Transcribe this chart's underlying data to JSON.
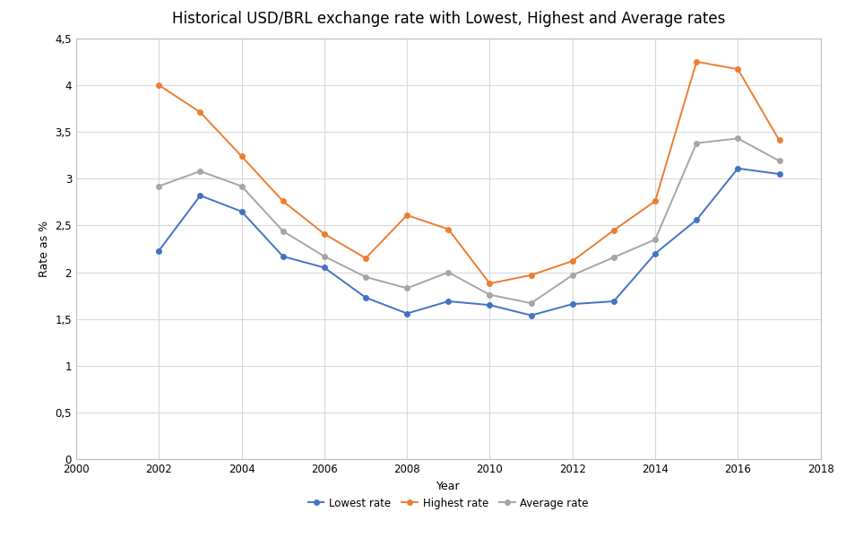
{
  "title": "Historical USD/BRL exchange rate with Lowest, Highest and Average rates",
  "xlabel": "Year",
  "ylabel": "Rate as %",
  "years": [
    2002,
    2003,
    2004,
    2005,
    2006,
    2007,
    2008,
    2009,
    2010,
    2011,
    2012,
    2013,
    2014,
    2015,
    2016,
    2017
  ],
  "lowest": [
    2.23,
    2.82,
    2.65,
    2.17,
    2.05,
    1.73,
    1.56,
    1.69,
    1.65,
    1.54,
    1.66,
    1.69,
    2.2,
    2.56,
    3.11,
    3.05
  ],
  "highest": [
    4.0,
    3.71,
    3.24,
    2.76,
    2.41,
    2.15,
    2.61,
    2.46,
    1.88,
    1.97,
    2.12,
    2.45,
    2.76,
    4.25,
    4.17,
    3.41
  ],
  "average": [
    2.92,
    3.08,
    2.92,
    2.44,
    2.17,
    1.95,
    1.83,
    2.0,
    1.76,
    1.67,
    1.97,
    2.16,
    2.35,
    3.38,
    3.43,
    3.19
  ],
  "lowest_color": "#4472C4",
  "highest_color": "#ED7D31",
  "average_color": "#A5A5A5",
  "bg_color": "#FFFFFF",
  "plot_bg_color": "#FFFFFF",
  "grid_color": "#D9D9D9",
  "xlim": [
    2000,
    2018
  ],
  "ylim": [
    0,
    4.5
  ],
  "yticks": [
    0,
    0.5,
    1.0,
    1.5,
    2.0,
    2.5,
    3.0,
    3.5,
    4.0,
    4.5
  ],
  "xticks": [
    2000,
    2002,
    2004,
    2006,
    2008,
    2010,
    2012,
    2014,
    2016,
    2018
  ],
  "title_fontsize": 12,
  "label_fontsize": 9,
  "tick_fontsize": 8.5,
  "legend_fontsize": 8.5,
  "marker": "o",
  "markersize": 4,
  "linewidth": 1.4
}
